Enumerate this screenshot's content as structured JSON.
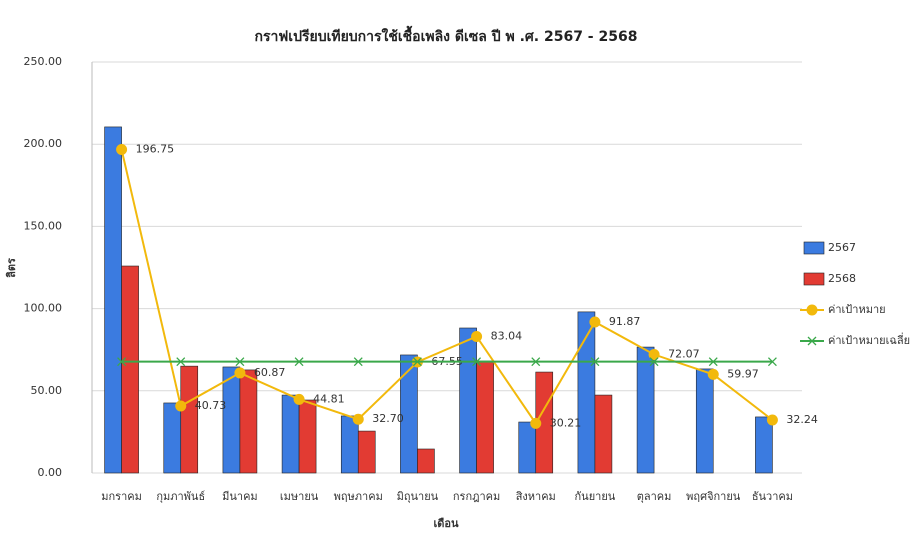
{
  "chart_data": {
    "type": "bar",
    "title": "กราฟเปรียบเทียบการใช้เชื้อเพลิง ดีเซล ปี พ .ศ. 2567 - 2568",
    "y_label": "ลิตร",
    "x_label": "เดือน",
    "categories": [
      "มกราคม",
      "กุมภาพันธ์",
      "มีนาคม",
      "เมษายน",
      "พฤษภาคม",
      "มิถุนายน",
      "กรกฎาคม",
      "สิงหาคม",
      "กันยายน",
      "ตุลาคม",
      "พฤศจิกายน",
      "ธันวาคม"
    ],
    "series": [
      {
        "name": "2567",
        "type": "bar",
        "color": "#3b7be0",
        "values": [
          210.5,
          42.6,
          64.5,
          47.4,
          34.7,
          71.8,
          88.2,
          31,
          98,
          76.6,
          63.3,
          34.1
        ]
      },
      {
        "name": "2568",
        "type": "bar",
        "color": "#e23b33",
        "values": [
          125.9,
          65,
          62.7,
          44.4,
          25.5,
          14.6,
          68.1,
          61.4,
          47.4,
          null,
          null,
          null
        ]
      },
      {
        "name": "ค่าเป้าหมาย",
        "type": "line",
        "marker": "circle",
        "color": "#f2b90c",
        "values": [
          196.75,
          40.73,
          60.87,
          44.81,
          32.7,
          67.55,
          83.04,
          30.21,
          91.87,
          72.07,
          59.97,
          32.24
        ],
        "value_labels": [
          "196.75",
          "40.73",
          "60.87",
          "44.81",
          "32.70",
          "67.55",
          "83.04",
          "30.21",
          "91.87",
          "72.07",
          "59.97",
          "32.24"
        ]
      },
      {
        "name": "ค่าเป้าหมายเฉลี่ย",
        "type": "line",
        "marker": "x",
        "color": "#3aa84a",
        "values": [
          67.73,
          67.73,
          67.73,
          67.73,
          67.73,
          67.73,
          67.73,
          67.73,
          67.73,
          67.73,
          67.73,
          67.73
        ]
      }
    ],
    "ylim": [
      0,
      250
    ],
    "yticks": [
      {
        "value": 0,
        "label": "0.00"
      },
      {
        "value": 50,
        "label": "50.00"
      },
      {
        "value": 100,
        "label": "100.00"
      },
      {
        "value": 150,
        "label": "150.00"
      },
      {
        "value": 200,
        "label": "200.00"
      },
      {
        "value": 250,
        "label": "250.00"
      }
    ],
    "grid": true,
    "legend": "right"
  }
}
